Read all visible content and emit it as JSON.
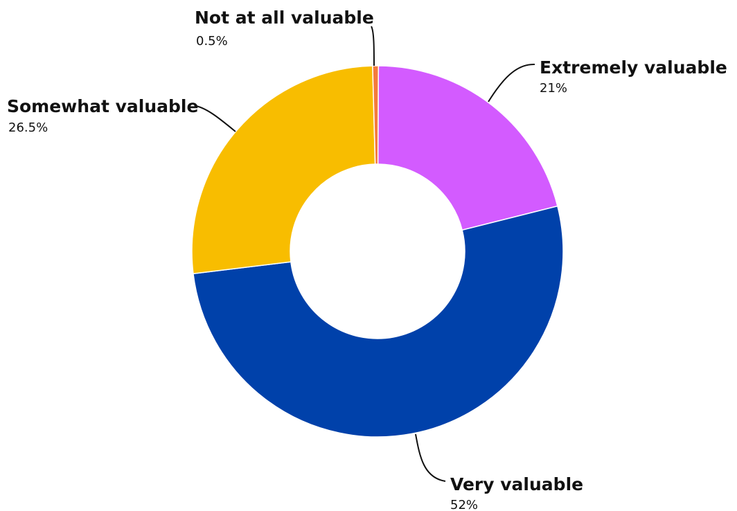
{
  "chart_data": {
    "type": "pie",
    "variant": "donut",
    "title": "",
    "categories": [
      "Extremely valuable",
      "Very valuable",
      "Somewhat valuable",
      "Not at all valuable"
    ],
    "values": [
      21,
      52,
      26.5,
      0.5
    ],
    "value_labels": [
      "21%",
      "52%",
      "26.5%",
      "0.5%"
    ],
    "colors": [
      "#D35BFF",
      "#0041AA",
      "#F8BD00",
      "#F47B3C"
    ],
    "unit": "%",
    "legend": "none",
    "grid": false
  }
}
